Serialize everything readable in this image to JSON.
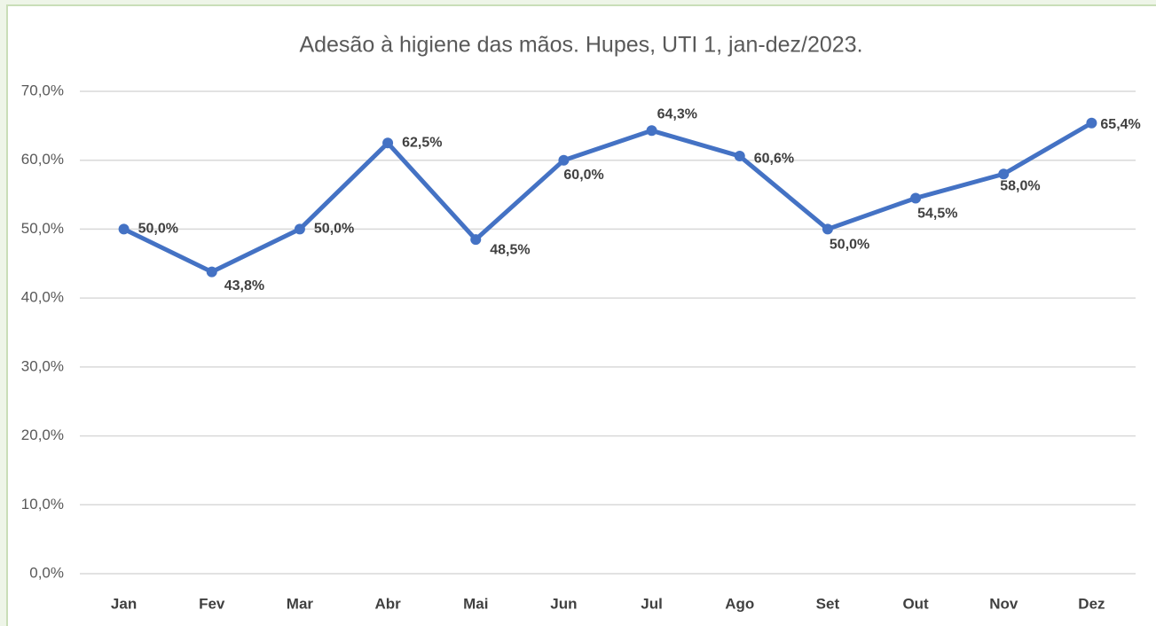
{
  "chart_data": {
    "type": "line",
    "title": "Adesão à higiene das mãos. Hupes, UTI 1, jan-dez/2023.",
    "categories": [
      "Jan",
      "Fev",
      "Mar",
      "Abr",
      "Mai",
      "Jun",
      "Jul",
      "Ago",
      "Set",
      "Out",
      "Nov",
      "Dez"
    ],
    "series": [
      {
        "name": "Adesão",
        "color": "#4472c4",
        "values": [
          50.0,
          43.8,
          50.0,
          62.5,
          48.5,
          60.0,
          64.3,
          60.6,
          50.0,
          54.5,
          58.0,
          65.4
        ],
        "value_labels": [
          "50,0%",
          "43,8%",
          "50,0%",
          "62,5%",
          "48,5%",
          "60,0%",
          "64,3%",
          "60,6%",
          "50,0%",
          "54,5%",
          "58,0%",
          "65,4%"
        ]
      }
    ],
    "ylim": [
      0,
      70
    ],
    "yticks": [
      {
        "value": 0,
        "label": "0,0%"
      },
      {
        "value": 10,
        "label": "10,0%"
      },
      {
        "value": 20,
        "label": "20,0%"
      },
      {
        "value": 30,
        "label": "30,0%"
      },
      {
        "value": 40,
        "label": "40,0%"
      },
      {
        "value": 50,
        "label": "50,0%"
      },
      {
        "value": 60,
        "label": "60,0%"
      },
      {
        "value": 70,
        "label": "70,0%"
      }
    ],
    "grid": true
  }
}
